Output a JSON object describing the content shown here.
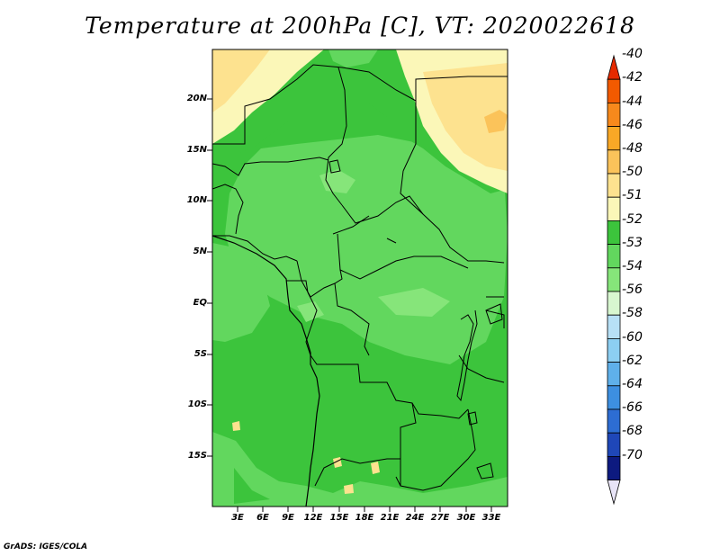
{
  "title": "Temperature at 200hPa [C], VT: 2020022618",
  "credit": "GrADS: IGES/COLA",
  "map": {
    "lat_labels": [
      "20N",
      "15N",
      "10N",
      "5N",
      "EQ",
      "5S",
      "10S",
      "15S"
    ],
    "lon_labels": [
      "3E",
      "6E",
      "9E",
      "12E",
      "15E",
      "18E",
      "21E",
      "24E",
      "27E",
      "30E",
      "33E"
    ]
  },
  "colorbar": {
    "labels": [
      "-40",
      "-42",
      "-44",
      "-46",
      "-48",
      "-50",
      "-51",
      "-52",
      "-53",
      "-54",
      "-56",
      "-58",
      "-60",
      "-62",
      "-64",
      "-66",
      "-68",
      "-70"
    ],
    "colors": [
      "#e62a00",
      "#f25a00",
      "#f7891c",
      "#f9a826",
      "#fbc35a",
      "#fde28f",
      "#fbf7b8",
      "#3cc43c",
      "#62d75e",
      "#86e57a",
      "#d8f7d0",
      "#b7e0f6",
      "#8ccff2",
      "#5fb0ea",
      "#3d8fe0",
      "#2d6dd3",
      "#1f47b8",
      "#0d1a80",
      "#e8e4f7"
    ]
  }
}
